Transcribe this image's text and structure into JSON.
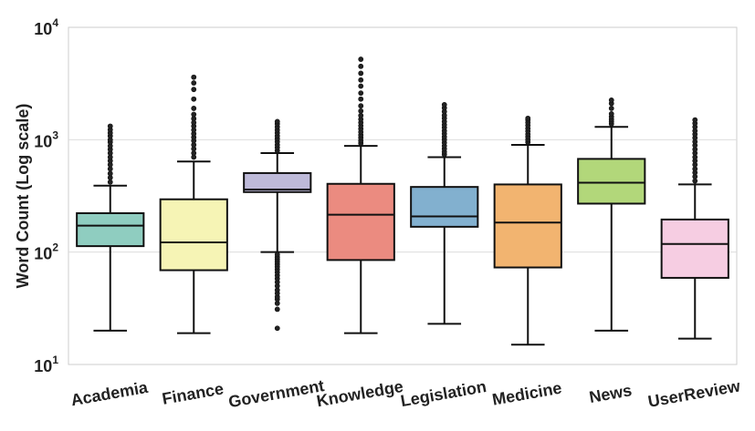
{
  "chart_data": {
    "type": "box",
    "title": "",
    "xlabel": "",
    "ylabel": "Word Count (Log scale)",
    "yscale": "log",
    "ylim": [
      10,
      10000
    ],
    "y_ticks": [
      {
        "value": 10,
        "base": "10",
        "exp": "1"
      },
      {
        "value": 100,
        "base": "10",
        "exp": "2"
      },
      {
        "value": 1000,
        "base": "10",
        "exp": "3"
      },
      {
        "value": 10000,
        "base": "10",
        "exp": "4"
      }
    ],
    "grid": "horizontal",
    "categories": [
      "Academia",
      "Finance",
      "Government",
      "Knowledge",
      "Legislation",
      "Medicine",
      "News",
      "UserReview"
    ],
    "boxes": [
      {
        "category": "Academia",
        "color": "#8fcdc0",
        "whislo": 20,
        "q1": 113,
        "med": 172,
        "q3": 222,
        "whishi": 390,
        "fliers": [
          420,
          460,
          500,
          550,
          600,
          650,
          700,
          760,
          820,
          880,
          950,
          1000,
          1080,
          1150,
          1230,
          1320
        ]
      },
      {
        "category": "Finance",
        "color": "#f6f4b5",
        "whislo": 19,
        "q1": 69,
        "med": 122,
        "q3": 295,
        "whishi": 640,
        "fliers": [
          700,
          760,
          830,
          900,
          980,
          1050,
          1130,
          1220,
          1320,
          1420,
          1540,
          1680,
          1900,
          2300,
          2800,
          3200,
          3600
        ]
      },
      {
        "category": "Government",
        "color": "#bebad9",
        "whislo": 100,
        "q1": 342,
        "med": 360,
        "q3": 505,
        "whishi": 760,
        "fliers": [
          21,
          31,
          35,
          38,
          40,
          43,
          46,
          50,
          54,
          58,
          62,
          66,
          70,
          74,
          78,
          82,
          86,
          90,
          95,
          800,
          850,
          900,
          960,
          1020,
          1080,
          1150,
          1220,
          1300,
          1380,
          1450
        ]
      },
      {
        "category": "Knowledge",
        "color": "#eb8b80",
        "whislo": 19,
        "q1": 85,
        "med": 215,
        "q3": 405,
        "whishi": 880,
        "fliers": [
          930,
          980,
          1040,
          1100,
          1170,
          1250,
          1330,
          1420,
          1520,
          1640,
          1800,
          2000,
          2300,
          2600,
          3000,
          3400,
          3900,
          4500,
          5200
        ]
      },
      {
        "category": "Legislation",
        "color": "#82b0cf",
        "whislo": 23,
        "q1": 168,
        "med": 208,
        "q3": 380,
        "whishi": 700,
        "fliers": [
          740,
          780,
          830,
          880,
          940,
          1000,
          1060,
          1130,
          1200,
          1280,
          1360,
          1450,
          1550,
          1650,
          1780,
          1920,
          2050
        ]
      },
      {
        "category": "Medicine",
        "color": "#f2b470",
        "whislo": 15,
        "q1": 73,
        "med": 183,
        "q3": 400,
        "whishi": 900,
        "fliers": [
          950,
          1000,
          1060,
          1120,
          1190,
          1260,
          1340,
          1420,
          1500,
          1550
        ]
      },
      {
        "category": "News",
        "color": "#b2d77a",
        "whislo": 20,
        "q1": 270,
        "med": 415,
        "q3": 675,
        "whishi": 1300,
        "fliers": [
          1380,
          1450,
          1520,
          1600,
          1700,
          1900,
          2100,
          2250
        ]
      },
      {
        "category": "UserReview",
        "color": "#f6cde2",
        "whislo": 17,
        "q1": 59,
        "med": 118,
        "q3": 195,
        "whishi": 400,
        "fliers": [
          430,
          470,
          510,
          550,
          600,
          650,
          700,
          760,
          820,
          890,
          960,
          1040,
          1120,
          1200,
          1300,
          1400,
          1500
        ]
      }
    ]
  }
}
